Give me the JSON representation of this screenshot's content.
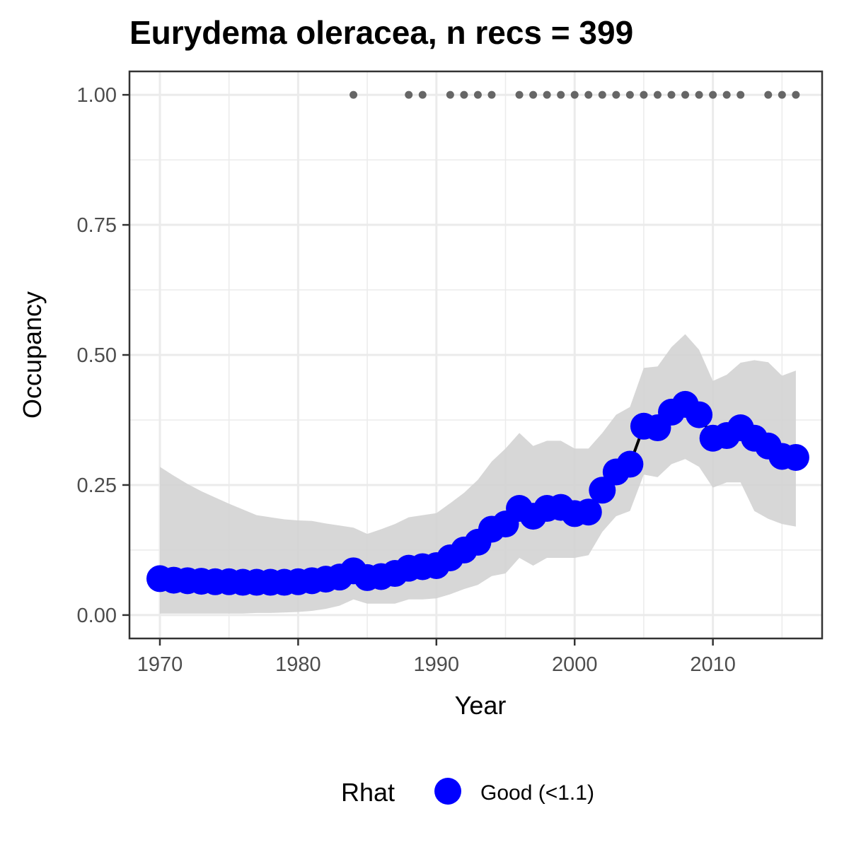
{
  "chart_data": {
    "type": "line",
    "title": "Eurydema oleracea, n recs = 399",
    "xlabel": "Year",
    "ylabel": "Occupancy",
    "xlim": [
      1967.8,
      2017.9
    ],
    "ylim": [
      -0.045,
      1.045
    ],
    "xticks": [
      1970,
      1980,
      1990,
      2000,
      2010
    ],
    "xtick_labels": [
      "1970",
      "1980",
      "1990",
      "2000",
      "2010"
    ],
    "yticks": [
      0,
      0.25,
      0.5,
      0.75,
      1
    ],
    "ytick_labels": [
      "0.00",
      "0.25",
      "0.50",
      "0.75",
      "1.00"
    ],
    "grid": true,
    "legend_position": "bottom",
    "legend": {
      "title": "Rhat",
      "entries": [
        {
          "label": "Good (<1.1)",
          "color": "#0000ff"
        }
      ]
    },
    "colors": {
      "points": "#0000ff",
      "line": "#000000",
      "ribbon": "#d3d3d3",
      "record_dots": "#666666",
      "grid": "#ebebeb",
      "panel_border": "#333333"
    },
    "x": [
      1970,
      1971,
      1972,
      1973,
      1974,
      1975,
      1976,
      1977,
      1978,
      1979,
      1980,
      1981,
      1982,
      1983,
      1984,
      1985,
      1986,
      1987,
      1988,
      1989,
      1990,
      1991,
      1992,
      1993,
      1994,
      1995,
      1996,
      1997,
      1998,
      1999,
      2000,
      2001,
      2002,
      2003,
      2004,
      2005,
      2006,
      2007,
      2008,
      2009,
      2010,
      2011,
      2012,
      2013,
      2014,
      2015,
      2016
    ],
    "series": [
      {
        "name": "Good (<1.1)",
        "values": [
          0.07,
          0.067,
          0.066,
          0.065,
          0.064,
          0.064,
          0.063,
          0.063,
          0.063,
          0.063,
          0.064,
          0.066,
          0.069,
          0.073,
          0.085,
          0.072,
          0.074,
          0.08,
          0.09,
          0.093,
          0.095,
          0.11,
          0.125,
          0.14,
          0.165,
          0.175,
          0.205,
          0.19,
          0.205,
          0.207,
          0.195,
          0.198,
          0.24,
          0.275,
          0.29,
          0.363,
          0.36,
          0.39,
          0.405,
          0.385,
          0.34,
          0.345,
          0.36,
          0.34,
          0.325,
          0.305,
          0.303
        ]
      }
    ],
    "ribbon": {
      "lower": [
        0.003,
        0.003,
        0.003,
        0.003,
        0.003,
        0.003,
        0.003,
        0.004,
        0.004,
        0.005,
        0.006,
        0.008,
        0.012,
        0.018,
        0.03,
        0.022,
        0.022,
        0.022,
        0.03,
        0.03,
        0.032,
        0.04,
        0.05,
        0.058,
        0.075,
        0.08,
        0.11,
        0.095,
        0.11,
        0.11,
        0.11,
        0.115,
        0.16,
        0.19,
        0.2,
        0.27,
        0.265,
        0.29,
        0.3,
        0.285,
        0.245,
        0.255,
        0.255,
        0.2,
        0.185,
        0.175,
        0.17
      ],
      "upper": [
        0.285,
        0.268,
        0.252,
        0.238,
        0.226,
        0.214,
        0.203,
        0.192,
        0.188,
        0.184,
        0.182,
        0.181,
        0.176,
        0.172,
        0.168,
        0.156,
        0.165,
        0.175,
        0.188,
        0.192,
        0.196,
        0.215,
        0.235,
        0.26,
        0.295,
        0.32,
        0.35,
        0.325,
        0.335,
        0.335,
        0.32,
        0.32,
        0.35,
        0.385,
        0.4,
        0.475,
        0.478,
        0.515,
        0.54,
        0.51,
        0.45,
        0.462,
        0.485,
        0.49,
        0.486,
        0.46,
        0.47
      ]
    },
    "records_y": 1.0,
    "record_years": [
      1984,
      1988,
      1989,
      1991,
      1992,
      1993,
      1994,
      1996,
      1997,
      1998,
      1999,
      2000,
      2001,
      2002,
      2003,
      2004,
      2005,
      2006,
      2007,
      2008,
      2009,
      2010,
      2011,
      2012,
      2014,
      2015,
      2016
    ]
  }
}
